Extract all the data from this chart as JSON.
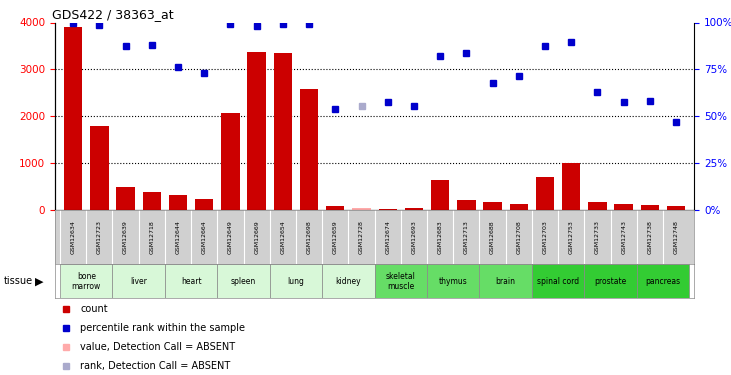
{
  "title": "GDS422 / 38363_at",
  "samples": [
    "GSM12634",
    "GSM12723",
    "GSM12639",
    "GSM12718",
    "GSM12644",
    "GSM12664",
    "GSM12649",
    "GSM12669",
    "GSM12654",
    "GSM12698",
    "GSM12659",
    "GSM12728",
    "GSM12674",
    "GSM12693",
    "GSM12683",
    "GSM12713",
    "GSM12688",
    "GSM12708",
    "GSM12703",
    "GSM12753",
    "GSM12733",
    "GSM12743",
    "GSM12738",
    "GSM12748"
  ],
  "tissues": [
    {
      "name": "bone\nmarrow",
      "start": 0,
      "end": 2,
      "color": "#d8f8d8"
    },
    {
      "name": "liver",
      "start": 2,
      "end": 4,
      "color": "#d8f8d8"
    },
    {
      "name": "heart",
      "start": 4,
      "end": 6,
      "color": "#d8f8d8"
    },
    {
      "name": "spleen",
      "start": 6,
      "end": 8,
      "color": "#d8f8d8"
    },
    {
      "name": "lung",
      "start": 8,
      "end": 10,
      "color": "#d8f8d8"
    },
    {
      "name": "kidney",
      "start": 10,
      "end": 12,
      "color": "#d8f8d8"
    },
    {
      "name": "skeletal\nmuscle",
      "start": 12,
      "end": 14,
      "color": "#66dd66"
    },
    {
      "name": "thymus",
      "start": 14,
      "end": 16,
      "color": "#66dd66"
    },
    {
      "name": "brain",
      "start": 16,
      "end": 18,
      "color": "#66dd66"
    },
    {
      "name": "spinal cord",
      "start": 18,
      "end": 20,
      "color": "#33cc33"
    },
    {
      "name": "prostate",
      "start": 20,
      "end": 22,
      "color": "#33cc33"
    },
    {
      "name": "pancreas",
      "start": 22,
      "end": 24,
      "color": "#33cc33"
    }
  ],
  "bar_values": [
    3900,
    1800,
    500,
    380,
    310,
    240,
    2080,
    3380,
    3360,
    2590,
    80,
    40,
    30,
    40,
    640,
    220,
    170,
    130,
    700,
    1010,
    170,
    120,
    110,
    80
  ],
  "bar_absent": [
    false,
    false,
    false,
    false,
    false,
    false,
    false,
    false,
    false,
    false,
    false,
    true,
    false,
    false,
    false,
    false,
    false,
    false,
    false,
    false,
    false,
    false,
    false,
    false
  ],
  "dot_values": [
    4000,
    3950,
    3500,
    3520,
    3050,
    2920,
    3960,
    3920,
    3960,
    3960,
    2160,
    2220,
    2310,
    2210,
    3280,
    3360,
    2720,
    2860,
    3500,
    3580,
    2520,
    2310,
    2320,
    1870
  ],
  "dot_absent": [
    false,
    false,
    false,
    false,
    false,
    false,
    false,
    false,
    false,
    false,
    false,
    true,
    false,
    false,
    false,
    false,
    false,
    false,
    false,
    false,
    false,
    false,
    false,
    false
  ],
  "ylim_left": [
    0,
    4000
  ],
  "ylim_right": [
    0,
    100
  ],
  "yticks_left": [
    0,
    1000,
    2000,
    3000,
    4000
  ],
  "yticks_right": [
    0,
    25,
    50,
    75,
    100
  ],
  "bar_color": "#cc0000",
  "bar_absent_color": "#ffaaaa",
  "dot_color": "#0000cc",
  "dot_absent_color": "#aaaacc",
  "sample_bg_color": "#d0d0d0",
  "legend_items": [
    {
      "color": "#cc0000",
      "label": "count"
    },
    {
      "color": "#0000cc",
      "label": "percentile rank within the sample"
    },
    {
      "color": "#ffaaaa",
      "label": "value, Detection Call = ABSENT"
    },
    {
      "color": "#aaaacc",
      "label": "rank, Detection Call = ABSENT"
    }
  ]
}
